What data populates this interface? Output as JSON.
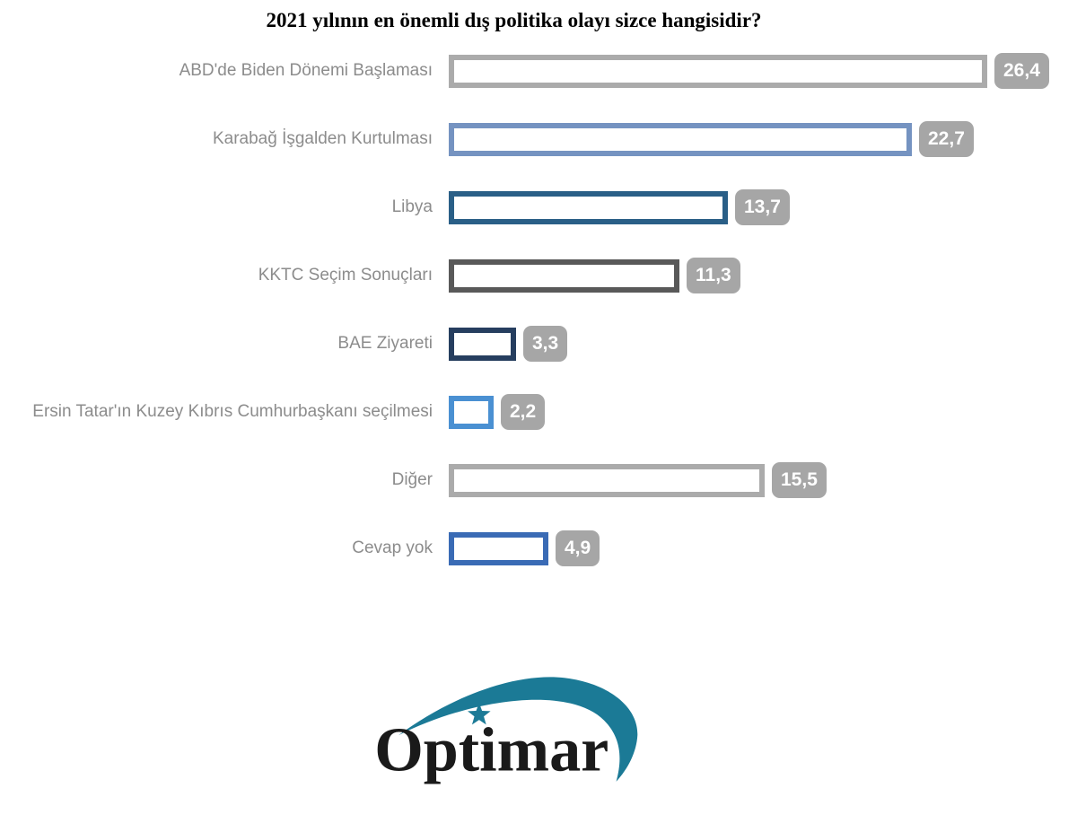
{
  "title": "2021 yılının en önemli dış politika olayı sizce hangisidir?",
  "chart_data": {
    "type": "bar",
    "orientation": "horizontal",
    "title": "2021 yılının en önemli dış politika olayı sizce hangisidir?",
    "categories": [
      "ABD'de Biden Dönemi Başlaması",
      "Karabağ İşgalden Kurtulması",
      "Libya",
      "KKTC Seçim Sonuçları",
      "BAE Ziyareti",
      "Ersin Tatar'ın Kuzey Kıbrıs Cumhurbaşkanı seçilmesi",
      "Diğer",
      "Cevap yok"
    ],
    "values": [
      26.4,
      22.7,
      13.7,
      11.3,
      3.3,
      2.2,
      15.5,
      4.9
    ],
    "display_values": [
      "26,4",
      "22,7",
      "13,7",
      "11,3",
      "3,3",
      "2,2",
      "15,5",
      "4,9"
    ],
    "bar_border_colors": [
      "#ABABAB",
      "#7593C1",
      "#2A5F87",
      "#595959",
      "#263E5F",
      "#4A90D2",
      "#ABABAB",
      "#3A6BB5"
    ],
    "bar_fill": "#FFFFFF",
    "badge_color": "#A6A6A6",
    "badge_text_color": "#FFFFFF",
    "label_color": "#8C8C8C",
    "xlim": [
      0,
      26.4
    ],
    "grid": false,
    "legend": false,
    "value_label_style": "gray rounded badge at bar end"
  },
  "logo": {
    "text": "Optimar",
    "text_color": "#1a1a1a",
    "accent_color": "#1B7A96"
  }
}
